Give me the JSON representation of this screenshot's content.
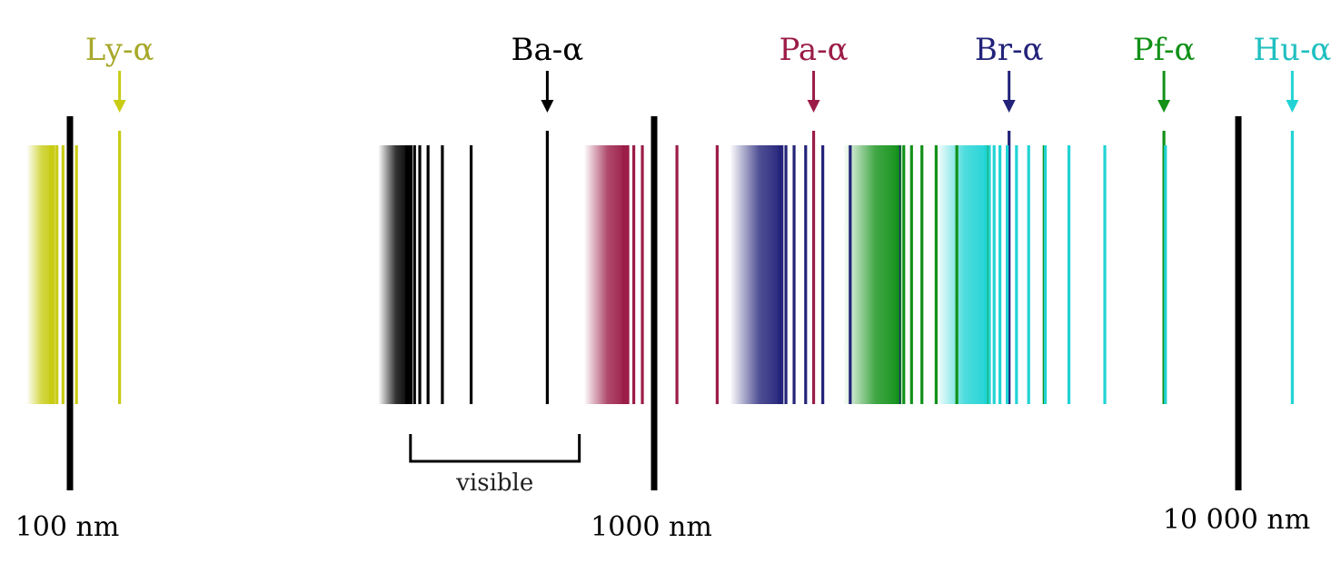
{
  "colors": {
    "lyman": "#c8cc14",
    "lyman_label": "#a8a82c",
    "balmer": "#000000",
    "paschen": "#9b1c47",
    "brackett": "#23237a",
    "pfund": "#129118",
    "humphreys": "#21d3d5",
    "humphreys_label": "#1fbfc0",
    "scale": "#000000"
  },
  "series": [
    {
      "key": "lyman",
      "label": "Ly-α",
      "alpha_nm": 121.6,
      "limit_nm": 91.2,
      "lines_nm": [
        102.6,
        97.3,
        95.0,
        93.8,
        93.1,
        92.6
      ],
      "icon": "down-arrow-icon"
    },
    {
      "key": "balmer",
      "label": "Ba-α",
      "alpha_nm": 656.3,
      "limit_nm": 364.6,
      "lines_nm": [
        486.1,
        434.0,
        410.2,
        397.0,
        388.9,
        383.5,
        379.8,
        377.1
      ],
      "icon": "down-arrow-icon"
    },
    {
      "key": "paschen",
      "label": "Pa-α",
      "alpha_nm": 1875,
      "limit_nm": 820.4,
      "lines_nm": [
        1282,
        1094,
        1005,
        954.6,
        922.9,
        901.5,
        886.3
      ],
      "icon": "down-arrow-icon"
    },
    {
      "key": "brackett",
      "label": "Br-α",
      "alpha_nm": 4051,
      "limit_nm": 1458,
      "lines_nm": [
        2625,
        2166,
        1944,
        1817,
        1736,
        1681,
        1641
      ],
      "icon": "down-arrow-icon"
    },
    {
      "key": "pfund",
      "label": "Pf-α",
      "alpha_nm": 7458,
      "limit_nm": 2279,
      "lines_nm": [
        4652,
        3740,
        3297,
        3039,
        2873,
        2758,
        2675,
        2613
      ],
      "icon": "down-arrow-icon"
    },
    {
      "key": "humphreys",
      "label": "Hu-α",
      "alpha_nm": 12370,
      "limit_nm": 3282,
      "lines_nm": [
        7503,
        5908,
        5129,
        4673,
        4376,
        4171,
        4021,
        3908,
        3819,
        3749,
        3693
      ],
      "icon": "down-arrow-icon"
    }
  ],
  "scale": {
    "type": "log",
    "ticks": [
      {
        "value_nm": 100,
        "label": "100 nm"
      },
      {
        "value_nm": 1000,
        "label": "1000 nm"
      },
      {
        "value_nm": 10000,
        "label": "10 000 nm"
      }
    ]
  },
  "visible": {
    "label": "visible",
    "from_nm": 380,
    "to_nm": 750
  }
}
